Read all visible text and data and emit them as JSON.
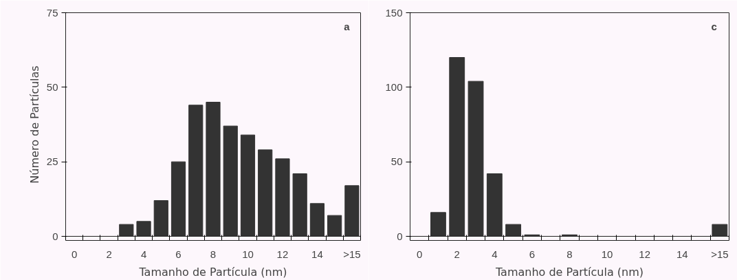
{
  "chart_data": [
    {
      "type": "bar",
      "xlabel": "Tamanho de Partícula (nm)",
      "ylabel": "Número de Partículas",
      "annotations": [
        "a"
      ],
      "categories": [
        "0",
        null,
        "2",
        null,
        "4",
        null,
        "6",
        null,
        "8",
        null,
        "10",
        null,
        "12",
        null,
        "14",
        null,
        ">15"
      ],
      "values": [
        0,
        0,
        0,
        4,
        5,
        12,
        25,
        44,
        45,
        37,
        34,
        29,
        26,
        21,
        11,
        7,
        17
      ],
      "color": "#333333",
      "ylim": [
        0,
        75
      ],
      "yticks": [
        0,
        25,
        50,
        75
      ],
      "grid": false
    },
    {
      "type": "bar",
      "xlabel": "Tamanho de Partícula (nm)",
      "annotations": [
        "c"
      ],
      "categories": [
        "0",
        null,
        "2",
        null,
        "4",
        null,
        "6",
        null,
        "8",
        null,
        "10",
        null,
        "12",
        null,
        "14",
        null,
        ">15"
      ],
      "values": [
        0,
        16,
        120,
        104,
        42,
        8,
        1,
        0,
        1,
        0,
        0,
        0,
        0,
        0,
        0,
        0,
        8
      ],
      "color": "#333333",
      "ylim": [
        0,
        150
      ],
      "yticks": [
        0,
        50,
        100,
        150
      ],
      "grid": false
    }
  ]
}
